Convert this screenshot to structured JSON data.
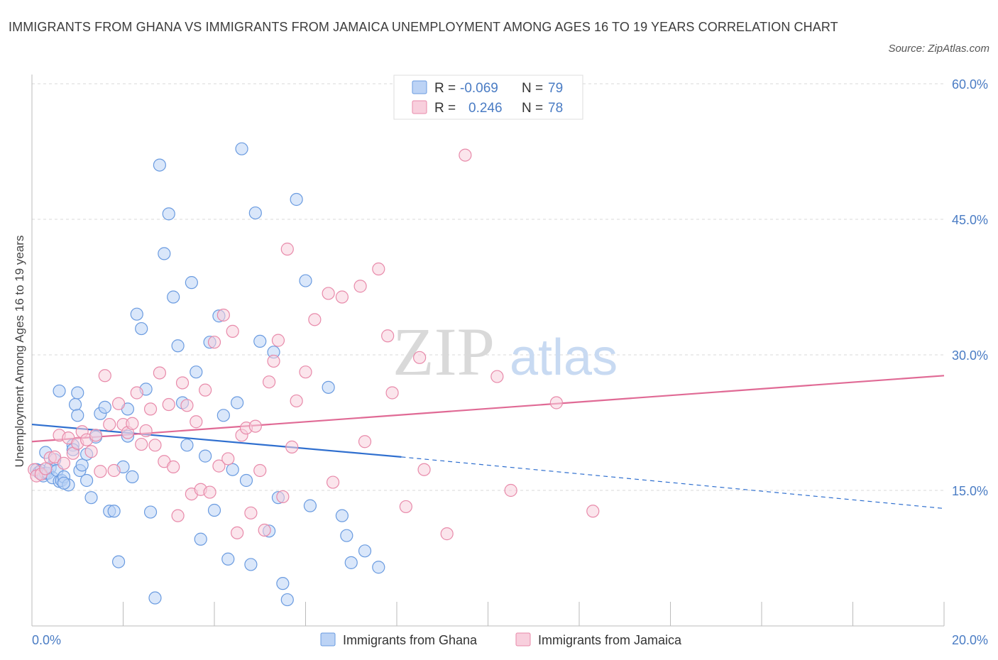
{
  "title": "IMMIGRANTS FROM GHANA VS IMMIGRANTS FROM JAMAICA UNEMPLOYMENT AMONG AGES 16 TO 19 YEARS CORRELATION CHART",
  "source": "Source: ZipAtlas.com",
  "watermark": {
    "zip": "ZIP",
    "atlas": "atlas"
  },
  "legend": [
    {
      "r_label": "R = ",
      "r_value": "-0.069",
      "n_label": "N = ",
      "n_value": "79"
    },
    {
      "r_label": "R = ",
      "r_value": "0.246",
      "n_label": "N = ",
      "n_value": "78"
    }
  ],
  "chart_data": {
    "type": "scatter",
    "ylabel": "Unemployment Among Ages 16 to 19 years",
    "xlim": [
      0,
      20
    ],
    "ylim": [
      0,
      60
    ],
    "x_tick_labels": [
      {
        "value": 0,
        "label": "0.0%"
      },
      {
        "value": 20,
        "label": "20.0%"
      }
    ],
    "y_tick_labels": [
      {
        "value": 15,
        "label": "15.0%"
      },
      {
        "value": 30,
        "label": "30.0%"
      },
      {
        "value": 45,
        "label": "45.0%"
      },
      {
        "value": 60,
        "label": "60.0%"
      }
    ],
    "grid": true,
    "legend_position": "top-center",
    "series": [
      {
        "name": "Immigrants from Ghana",
        "color": "#6a9be0",
        "fill": "#bcd3f5",
        "trend": {
          "x0": 0,
          "y0": 22.3,
          "x1": 8.1,
          "y1": 18.7,
          "dash_to_x": 20,
          "dash_to_y": 13.0
        },
        "points": [
          [
            0.1,
            17.3
          ],
          [
            0.15,
            17.0
          ],
          [
            0.2,
            17.2
          ],
          [
            0.25,
            16.6
          ],
          [
            0.3,
            16.9
          ],
          [
            0.35,
            16.9
          ],
          [
            0.4,
            17.5
          ],
          [
            0.45,
            16.4
          ],
          [
            0.5,
            18.4
          ],
          [
            0.55,
            17.2
          ],
          [
            0.6,
            16.0
          ],
          [
            0.65,
            16.1
          ],
          [
            0.7,
            16.5
          ],
          [
            0.8,
            15.6
          ],
          [
            0.9,
            20.0
          ],
          [
            0.95,
            24.5
          ],
          [
            1.0,
            25.8
          ],
          [
            1.05,
            17.2
          ],
          [
            1.1,
            17.8
          ],
          [
            1.2,
            16.1
          ],
          [
            1.3,
            14.2
          ],
          [
            1.4,
            20.9
          ],
          [
            1.5,
            23.5
          ],
          [
            1.6,
            24.2
          ],
          [
            1.7,
            12.7
          ],
          [
            1.8,
            12.7
          ],
          [
            1.9,
            7.1
          ],
          [
            2.0,
            17.6
          ],
          [
            2.1,
            21.0
          ],
          [
            2.2,
            16.5
          ],
          [
            2.3,
            34.5
          ],
          [
            2.4,
            32.9
          ],
          [
            2.5,
            26.2
          ],
          [
            2.6,
            12.6
          ],
          [
            2.7,
            3.1
          ],
          [
            2.8,
            51.0
          ],
          [
            2.9,
            41.2
          ],
          [
            3.0,
            45.6
          ],
          [
            3.1,
            36.4
          ],
          [
            3.2,
            31.0
          ],
          [
            3.3,
            24.7
          ],
          [
            3.4,
            20.0
          ],
          [
            3.5,
            38.0
          ],
          [
            3.6,
            28.1
          ],
          [
            3.7,
            9.6
          ],
          [
            3.8,
            18.8
          ],
          [
            3.9,
            31.4
          ],
          [
            4.0,
            12.8
          ],
          [
            4.1,
            34.3
          ],
          [
            4.2,
            23.3
          ],
          [
            4.3,
            7.4
          ],
          [
            4.4,
            17.3
          ],
          [
            4.5,
            24.7
          ],
          [
            4.6,
            52.8
          ],
          [
            4.7,
            16.1
          ],
          [
            4.8,
            6.8
          ],
          [
            4.9,
            45.7
          ],
          [
            5.0,
            31.5
          ],
          [
            5.2,
            10.5
          ],
          [
            5.3,
            30.3
          ],
          [
            5.4,
            14.2
          ],
          [
            5.5,
            4.7
          ],
          [
            5.6,
            2.9
          ],
          [
            5.8,
            47.2
          ],
          [
            6.0,
            38.2
          ],
          [
            6.1,
            13.3
          ],
          [
            6.5,
            26.4
          ],
          [
            6.8,
            12.2
          ],
          [
            6.9,
            10.0
          ],
          [
            7.0,
            7.0
          ],
          [
            7.3,
            8.3
          ],
          [
            7.6,
            6.5
          ],
          [
            0.7,
            15.8
          ],
          [
            1.2,
            19.0
          ],
          [
            0.3,
            19.2
          ],
          [
            2.1,
            24.0
          ],
          [
            1.0,
            23.3
          ],
          [
            0.6,
            26.0
          ],
          [
            0.9,
            19.5
          ]
        ]
      },
      {
        "name": "Immigrants from Jamaica",
        "color": "#e88aaa",
        "fill": "#f8cfdd",
        "trend": {
          "x0": 0,
          "y0": 20.4,
          "x1": 20,
          "y1": 27.7
        },
        "points": [
          [
            0.05,
            17.3
          ],
          [
            0.1,
            16.6
          ],
          [
            0.2,
            16.8
          ],
          [
            0.3,
            17.4
          ],
          [
            0.4,
            18.6
          ],
          [
            0.5,
            18.7
          ],
          [
            0.6,
            21.1
          ],
          [
            0.7,
            18.0
          ],
          [
            0.8,
            20.8
          ],
          [
            0.9,
            19.1
          ],
          [
            1.0,
            20.2
          ],
          [
            1.1,
            21.5
          ],
          [
            1.2,
            20.6
          ],
          [
            1.3,
            19.3
          ],
          [
            1.4,
            21.1
          ],
          [
            1.5,
            17.1
          ],
          [
            1.6,
            27.7
          ],
          [
            1.7,
            22.3
          ],
          [
            1.8,
            17.2
          ],
          [
            1.9,
            24.6
          ],
          [
            2.0,
            22.3
          ],
          [
            2.1,
            21.4
          ],
          [
            2.2,
            22.4
          ],
          [
            2.3,
            25.8
          ],
          [
            2.4,
            20.1
          ],
          [
            2.5,
            21.6
          ],
          [
            2.6,
            24.0
          ],
          [
            2.7,
            20.0
          ],
          [
            2.8,
            28.0
          ],
          [
            2.9,
            18.2
          ],
          [
            3.0,
            24.5
          ],
          [
            3.1,
            17.6
          ],
          [
            3.2,
            12.2
          ],
          [
            3.3,
            26.9
          ],
          [
            3.4,
            24.4
          ],
          [
            3.5,
            14.6
          ],
          [
            3.6,
            22.6
          ],
          [
            3.7,
            15.1
          ],
          [
            3.8,
            26.1
          ],
          [
            3.9,
            14.8
          ],
          [
            4.0,
            31.4
          ],
          [
            4.1,
            17.7
          ],
          [
            4.2,
            34.4
          ],
          [
            4.3,
            18.5
          ],
          [
            4.4,
            32.6
          ],
          [
            4.5,
            10.3
          ],
          [
            4.6,
            21.1
          ],
          [
            4.7,
            21.9
          ],
          [
            4.8,
            12.5
          ],
          [
            4.9,
            22.1
          ],
          [
            5.0,
            17.2
          ],
          [
            5.1,
            10.6
          ],
          [
            5.2,
            27.0
          ],
          [
            5.3,
            29.3
          ],
          [
            5.4,
            31.6
          ],
          [
            5.5,
            14.3
          ],
          [
            5.6,
            41.7
          ],
          [
            5.7,
            19.8
          ],
          [
            5.8,
            24.9
          ],
          [
            6.0,
            28.1
          ],
          [
            6.2,
            33.9
          ],
          [
            6.5,
            36.8
          ],
          [
            6.6,
            15.9
          ],
          [
            6.8,
            36.4
          ],
          [
            7.2,
            37.6
          ],
          [
            7.3,
            20.4
          ],
          [
            7.6,
            39.5
          ],
          [
            7.8,
            32.1
          ],
          [
            7.9,
            25.8
          ],
          [
            8.2,
            13.2
          ],
          [
            8.5,
            29.7
          ],
          [
            8.6,
            17.3
          ],
          [
            9.1,
            10.2
          ],
          [
            9.5,
            52.1
          ],
          [
            10.2,
            27.6
          ],
          [
            10.5,
            15.0
          ],
          [
            11.5,
            24.7
          ],
          [
            12.3,
            12.7
          ]
        ]
      }
    ]
  },
  "bottom_legend": [
    "Immigrants from Ghana",
    "Immigrants from Jamaica"
  ]
}
